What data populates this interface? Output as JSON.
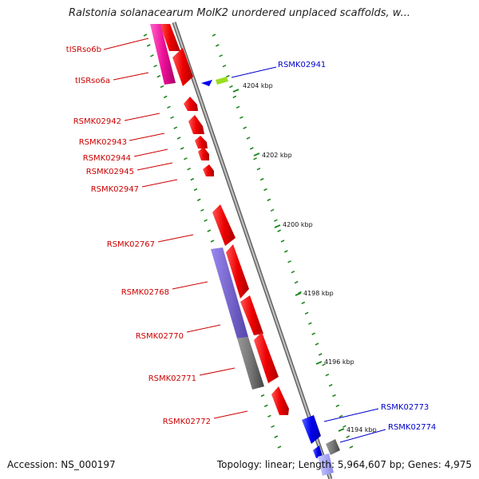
{
  "title": "Ralstonia solanacearum MolK2 unordered unplaced scaffolds, w...",
  "footer": {
    "accession": "Accession: NS_000197",
    "summary": "Topology: linear; Length: 5,964,607 bp; Genes: 4,975"
  },
  "scale_ticks": [
    {
      "label": "4204 kbp"
    },
    {
      "label": "4202 kbp"
    },
    {
      "label": "4200 kbp"
    },
    {
      "label": "4198 kbp"
    },
    {
      "label": "4196 kbp"
    },
    {
      "label": "4194 kbp"
    }
  ],
  "left_labels": [
    {
      "text": "tISRso6b"
    },
    {
      "text": "tISRso6a"
    },
    {
      "text": "RSMK02942"
    },
    {
      "text": "RSMK02943"
    },
    {
      "text": "RSMK02944"
    },
    {
      "text": "RSMK02945"
    },
    {
      "text": "RSMK02947"
    },
    {
      "text": "RSMK02767"
    },
    {
      "text": "RSMK02768"
    },
    {
      "text": "RSMK02770"
    },
    {
      "text": "RSMK02771"
    },
    {
      "text": "RSMK02772"
    }
  ],
  "right_labels": [
    {
      "text": "RSMK02941"
    },
    {
      "text": "RSMK02773"
    },
    {
      "text": "RSMK02774"
    }
  ],
  "colors": {
    "forward_gene": "#ee0000",
    "reverse_gene": "#0000ee",
    "trna": "#ee1199",
    "misc_feature": "#7766cc",
    "pseudogene": "#777777",
    "small_feature": "#99dd22",
    "dots": "#228822",
    "axis": "#888888"
  }
}
